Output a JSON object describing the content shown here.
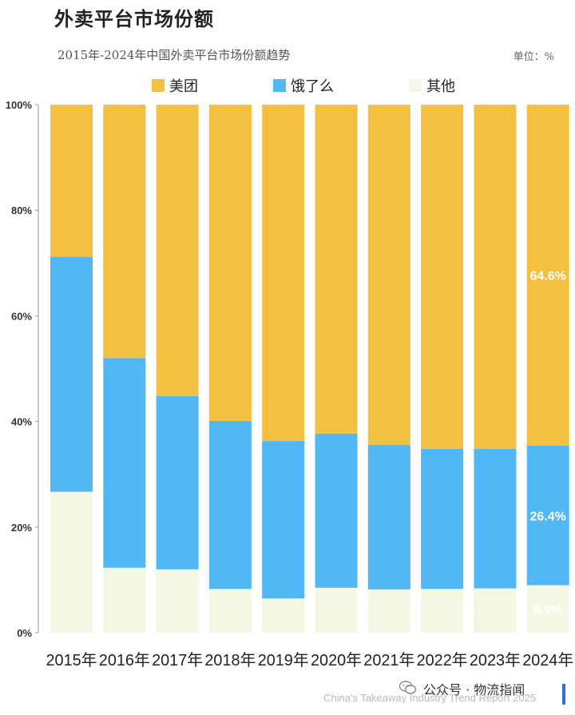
{
  "header": {
    "title": "外卖平台市场份额",
    "subtitle": "2015年-2024年中国外卖平台市场份额趋势",
    "unit": "单位：%"
  },
  "footer": {
    "source": "公众号 · 物流指闻",
    "watermark": "China's Takeaway Industry Trend Report 2025"
  },
  "chart_data": {
    "type": "bar",
    "stacked": true,
    "categories": [
      "2015年",
      "2016年",
      "2017年",
      "2018年",
      "2019年",
      "2020年",
      "2021年",
      "2022年",
      "2023年",
      "2024年"
    ],
    "series": [
      {
        "name": "其他",
        "color": "#f4f7e4",
        "values": [
          26.7,
          12.3,
          12.0,
          8.3,
          6.5,
          8.5,
          8.2,
          8.3,
          8.4,
          9.0
        ]
      },
      {
        "name": "饿了么",
        "color": "#52b7f5",
        "values": [
          44.5,
          39.7,
          32.8,
          31.8,
          29.8,
          29.2,
          27.4,
          26.5,
          26.4,
          26.4
        ]
      },
      {
        "name": "美团",
        "color": "#f3c141",
        "values": [
          28.8,
          48.0,
          55.2,
          59.9,
          63.7,
          62.3,
          64.4,
          65.2,
          65.2,
          64.6
        ]
      }
    ],
    "data_labels": [
      {
        "series": "美团",
        "category": "2024年",
        "text": "64.6%"
      },
      {
        "series": "饿了么",
        "category": "2024年",
        "text": "26.4%"
      },
      {
        "series": "其他",
        "category": "2024年",
        "text": "9.0%"
      }
    ],
    "legend_order": [
      "美团",
      "饿了么",
      "其他"
    ],
    "legend_position": "top",
    "y_ticks": [
      "0%",
      "20%",
      "40%",
      "60%",
      "80%",
      "100%"
    ],
    "ylim": [
      0,
      100
    ],
    "grid": false
  }
}
